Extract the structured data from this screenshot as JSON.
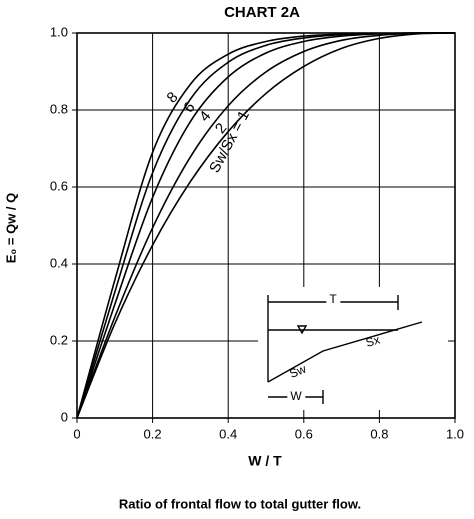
{
  "chart_data": {
    "type": "line",
    "title": "CHART 2A",
    "x_label": "W / T",
    "y_label": "E₀ = Qw / Q",
    "caption": "Ratio of frontal flow to total gutter flow.",
    "annotations": [
      "T",
      "Sw",
      "Sx",
      "W"
    ],
    "x": [
      0,
      0.1,
      0.2,
      0.3,
      0.4,
      0.5,
      0.6,
      0.7,
      0.8,
      0.9,
      1
    ],
    "series": [
      {
        "name": "Sw/Sx = 1",
        "color": "#000000",
        "values": [
          0,
          0.245,
          0.449,
          0.614,
          0.744,
          0.843,
          0.913,
          0.96,
          0.986,
          0.998,
          1
        ]
      },
      {
        "name": "2",
        "color": "#000000",
        "values": [
          0,
          0.262,
          0.494,
          0.678,
          0.811,
          0.899,
          0.952,
          0.981,
          0.994,
          0.999,
          1
        ]
      },
      {
        "name": "4",
        "color": "#000000",
        "values": [
          0,
          0.295,
          0.573,
          0.77,
          0.886,
          0.948,
          0.978,
          0.992,
          0.998,
          1,
          1
        ]
      },
      {
        "name": "6",
        "color": "#000000",
        "values": [
          0,
          0.327,
          0.637,
          0.828,
          0.924,
          0.968,
          0.987,
          0.996,
          0.999,
          1,
          1
        ]
      },
      {
        "name": "8",
        "color": "#000000",
        "values": [
          0,
          0.358,
          0.69,
          0.867,
          0.945,
          0.978,
          0.992,
          0.997,
          0.999,
          1,
          1
        ]
      }
    ],
    "xlim": [
      0,
      1
    ],
    "ylim": [
      0,
      1
    ],
    "xticks": [
      0,
      0.2,
      0.4,
      0.6,
      0.8,
      {
        "value": 1,
        "label": "1.0"
      }
    ],
    "yticks": [
      0,
      0.2,
      0.4,
      0.6,
      0.8,
      {
        "value": 1,
        "label": "1.0"
      }
    ],
    "grid": true
  }
}
